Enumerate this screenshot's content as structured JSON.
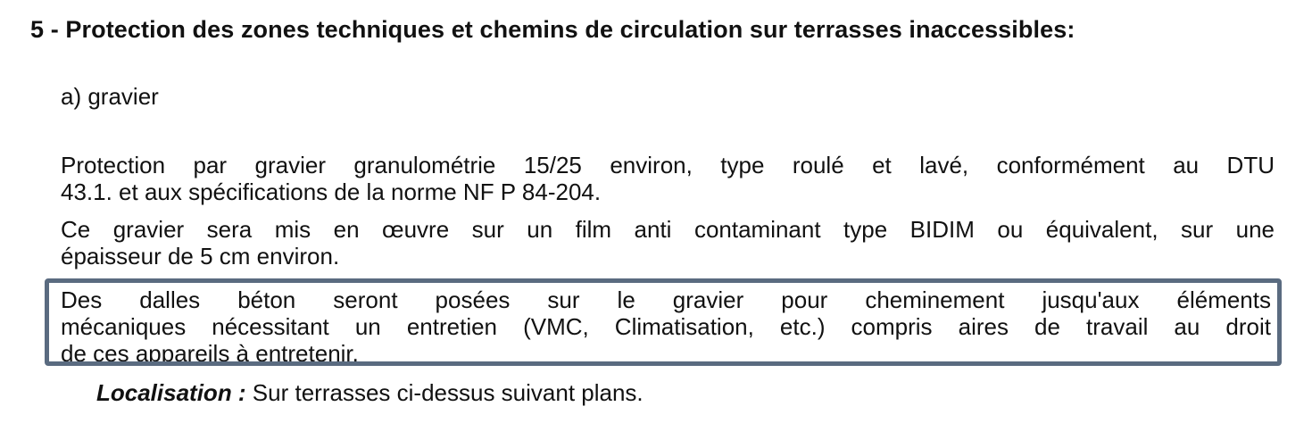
{
  "section": {
    "heading": "5 - Protection des zones techniques et chemins de circulation sur terrasses inaccessibles:",
    "subheading": "a) gravier",
    "paragraph1": {
      "line1": "Protection par gravier granulométrie 15/25 environ, type roulé et lavé, conformément au DTU",
      "line2": "43.1. et aux spécifications de la norme NF P 84-204."
    },
    "paragraph2": {
      "line1": "Ce gravier sera mis en œuvre sur un film anti contaminant type BIDIM ou équivalent, sur une",
      "line2": "épaisseur de 5 cm environ."
    },
    "highlighted_paragraph": {
      "line1": "Des dalles béton seront posées sur le gravier pour cheminement jusqu'aux éléments",
      "line2": "mécaniques nécessitant un entretien (VMC, Climatisation, etc.) compris aires de travail au droit",
      "line3": "de ces appareils à entretenir."
    },
    "localisation": {
      "label": "Localisation :",
      "text": " Sur terrasses ci-dessus suivant plans."
    }
  },
  "colors": {
    "highlight_border": "#5a6b80"
  }
}
